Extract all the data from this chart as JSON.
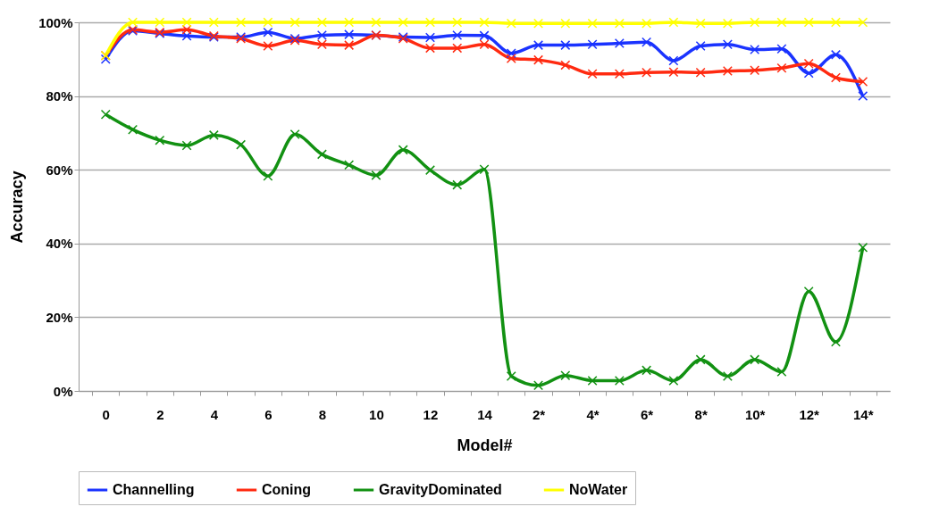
{
  "chart_data": {
    "type": "line",
    "xlabel": "Model#",
    "ylabel": "Accuracy",
    "categories": [
      "0",
      null,
      "2",
      null,
      "4",
      null,
      "6",
      null,
      "8",
      null,
      "10",
      null,
      "12",
      null,
      "14",
      null,
      "2*",
      null,
      "4*",
      null,
      "6*",
      null,
      "8*",
      null,
      "10*",
      null,
      "12*",
      null,
      "14*"
    ],
    "ylim": [
      0,
      100
    ],
    "yticks": [
      {
        "value": 0,
        "label": "0%"
      },
      {
        "value": 20,
        "label": "20%"
      },
      {
        "value": 40,
        "label": "40%"
      },
      {
        "value": 60,
        "label": "60%"
      },
      {
        "value": 80,
        "label": "80%"
      },
      {
        "value": 100,
        "label": "100%"
      }
    ],
    "grid": "y",
    "legend": "bottom",
    "marker": "cross",
    "line_style": "solid",
    "series": [
      {
        "name": "Channelling",
        "color": "#1a33ff",
        "values": [
          90,
          97.7,
          97,
          96.3,
          96,
          96,
          97.3,
          95.6,
          96.5,
          96.7,
          96.5,
          96,
          95.9,
          96.5,
          96.4,
          91.6,
          93.8,
          93.8,
          94,
          94.3,
          94.6,
          89.6,
          93.6,
          94,
          92.6,
          92.8,
          86.2,
          91.2,
          80
        ]
      },
      {
        "name": "Coning",
        "color": "#ff2a10",
        "values": [
          91,
          98,
          97.3,
          98,
          96.3,
          95.6,
          93.6,
          95.1,
          94,
          93.8,
          96.5,
          95.6,
          93,
          93,
          94,
          90.2,
          89.8,
          88.4,
          86,
          86,
          86.4,
          86.5,
          86.4,
          86.8,
          87,
          87.6,
          88.8,
          85,
          83.9
        ]
      },
      {
        "name": "GravityDominated",
        "color": "#129112",
        "values": [
          75,
          70.9,
          68,
          66.6,
          69.4,
          66.8,
          58.3,
          69.6,
          64.2,
          61.3,
          58.5,
          65.4,
          59.9,
          55.9,
          60.1,
          4,
          1.5,
          4.2,
          2.8,
          2.8,
          5.6,
          2.8,
          8.5,
          4,
          8.5,
          5.2,
          27,
          13.3,
          38.9
        ]
      },
      {
        "name": "NoWater",
        "color": "#ffff00",
        "values": [
          91,
          100,
          100,
          100,
          100,
          100,
          100,
          100,
          100,
          100,
          100,
          100,
          100,
          100,
          100,
          99.7,
          99.7,
          99.7,
          99.7,
          99.7,
          99.7,
          100,
          99.7,
          99.7,
          100,
          100,
          100,
          100,
          100
        ]
      }
    ]
  }
}
